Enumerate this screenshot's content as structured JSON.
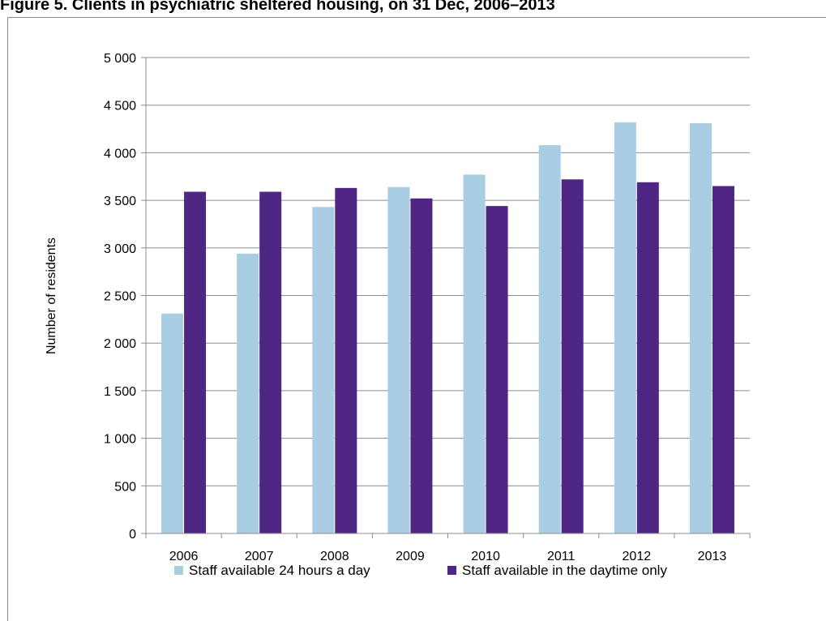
{
  "title": "Figure 5. Clients in psychiatric sheltered housing, on 31 Dec, 2006–2013",
  "colors": {
    "series_24h": "#a9cde3",
    "series_daytime": "#4f2683",
    "grid": "#8c8c8c",
    "axis": "#8c8c8c"
  },
  "chart_data": {
    "type": "bar",
    "title": "Figure 5. Clients in psychiatric sheltered housing, on 31 Dec, 2006–2013",
    "xlabel": "",
    "ylabel": "Number of residents",
    "categories": [
      "2006",
      "2007",
      "2008",
      "2009",
      "2010",
      "2011",
      "2012",
      "2013"
    ],
    "series": [
      {
        "name": "Staff available 24 hours a day",
        "values": [
          2310,
          2940,
          3430,
          3640,
          3770,
          4080,
          4320,
          4310
        ]
      },
      {
        "name": "Staff available in the daytime only",
        "values": [
          3590,
          3590,
          3630,
          3520,
          3440,
          3720,
          3690,
          3650
        ]
      }
    ],
    "ylim": [
      0,
      5000
    ],
    "yticks": [
      0,
      500,
      1000,
      1500,
      2000,
      2500,
      3000,
      3500,
      4000,
      4500,
      5000
    ],
    "ytick_labels": [
      "0",
      "500",
      "1 000",
      "1 500",
      "2 000",
      "2 500",
      "3 000",
      "3 500",
      "4 000",
      "4 500",
      "5 000"
    ],
    "grid": true,
    "legend": "bottom"
  }
}
